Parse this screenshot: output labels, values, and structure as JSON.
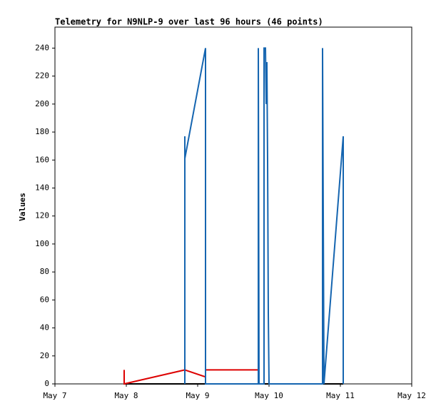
{
  "chart_data": {
    "type": "line",
    "title": "Telemetry for N9NLP-9 over last 96 hours (46 points)",
    "y_label": "Values",
    "xlim": [
      0,
      5
    ],
    "xticks": [
      {
        "value": 0,
        "label": "May 7"
      },
      {
        "value": 1,
        "label": "May 8"
      },
      {
        "value": 2,
        "label": "May 9"
      },
      {
        "value": 3,
        "label": "May 10"
      },
      {
        "value": 4,
        "label": "May 11"
      },
      {
        "value": 5,
        "label": "May 12"
      }
    ],
    "ylim": [
      0,
      255
    ],
    "yticks": [
      0,
      20,
      40,
      60,
      80,
      100,
      120,
      140,
      160,
      180,
      200,
      220,
      240
    ],
    "grid": false,
    "series": [
      {
        "color": "#000000",
        "x": [
          0.97,
          4.04
        ],
        "values": [
          0,
          0
        ]
      },
      {
        "color": "#dd0000",
        "x": [
          0.97,
          0.97,
          1.82,
          2.11,
          2.11,
          2.84
        ],
        "values": [
          10,
          0,
          10,
          5,
          10,
          10
        ]
      },
      {
        "color": "#1565b0",
        "x": [
          1.82,
          1.82,
          1.82,
          2.11,
          2.11,
          2.85,
          2.85,
          2.86,
          2.93,
          2.93,
          2.95,
          2.96,
          2.97,
          2.98,
          2.99,
          3.0,
          3.75,
          3.75,
          3.76,
          3.77,
          4.04,
          4.04
        ],
        "values": [
          0,
          177,
          161,
          240,
          0,
          0,
          240,
          0,
          0,
          240,
          240,
          200,
          230,
          160,
          50,
          0,
          0,
          240,
          120,
          0,
          177,
          0
        ]
      }
    ]
  }
}
